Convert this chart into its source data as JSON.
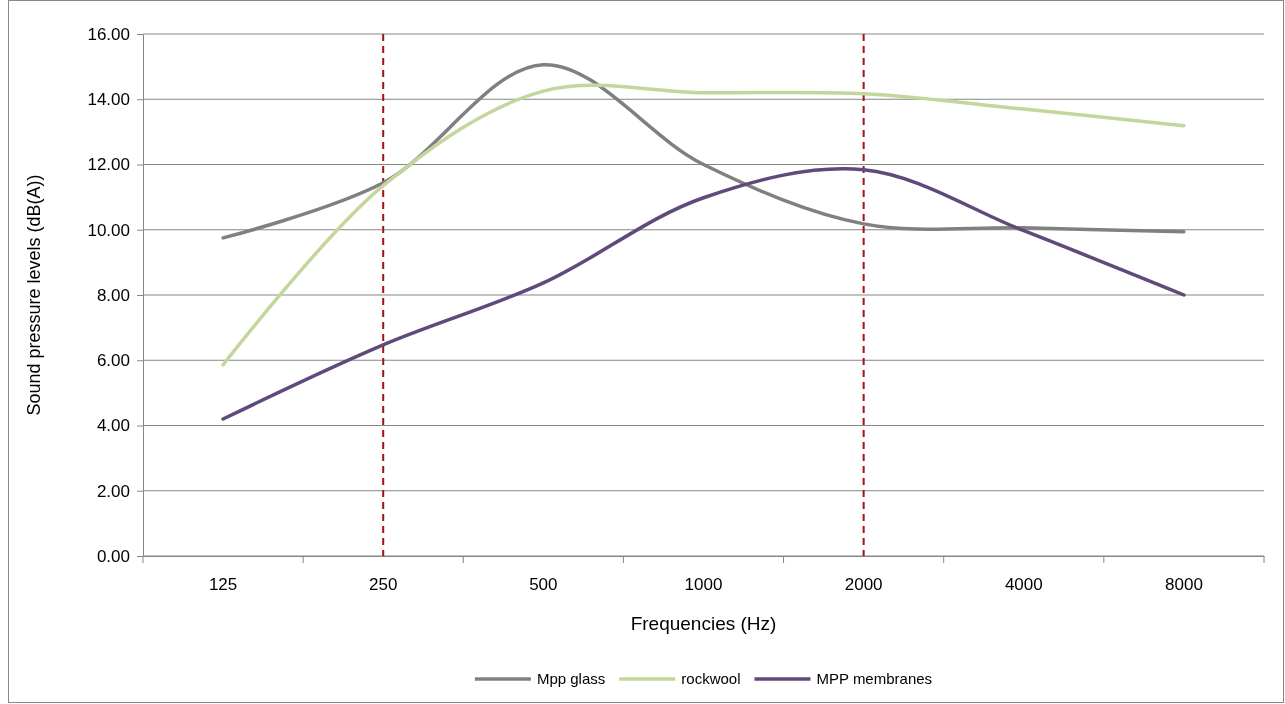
{
  "chart_data": {
    "type": "line",
    "xlabel": "Frequencies (Hz)",
    "ylabel": "Sound pressure levels (dB(A))",
    "categories": [
      "125",
      "250",
      "500",
      "1000",
      "2000",
      "4000",
      "8000"
    ],
    "series": [
      {
        "name": "Mpp glass",
        "color": "#808080",
        "values": [
          9.75,
          11.44,
          15.06,
          12.0,
          10.18,
          10.06,
          9.94
        ]
      },
      {
        "name": "rockwool",
        "color": "#c3d69b",
        "values": [
          5.86,
          11.35,
          14.25,
          14.2,
          14.17,
          13.7,
          13.19
        ]
      },
      {
        "name": "MPP membranes",
        "color": "#604a7b",
        "values": [
          4.2,
          6.47,
          8.37,
          10.98,
          11.84,
          9.97,
          8.0
        ]
      }
    ],
    "ylim": [
      0,
      16
    ],
    "yticks": [
      {
        "value": 0,
        "label": "0.00"
      },
      {
        "value": 2,
        "label": "2.00"
      },
      {
        "value": 4,
        "label": "4.00"
      },
      {
        "value": 6,
        "label": "6.00"
      },
      {
        "value": 8,
        "label": "8.00"
      },
      {
        "value": 10,
        "label": "10.00"
      },
      {
        "value": 12,
        "label": "12.00"
      },
      {
        "value": 14,
        "label": "14.00"
      },
      {
        "value": 16,
        "label": "16.00"
      }
    ],
    "grid": "y",
    "legend": "bottom",
    "marker": "none",
    "line_style": "solid",
    "ref_lines": [
      {
        "axis": "x",
        "value": "250",
        "color": "#a50f15",
        "line_style": "dashed"
      },
      {
        "axis": "x",
        "value": "2000",
        "color": "#a50f15",
        "line_style": "dashed"
      }
    ]
  }
}
